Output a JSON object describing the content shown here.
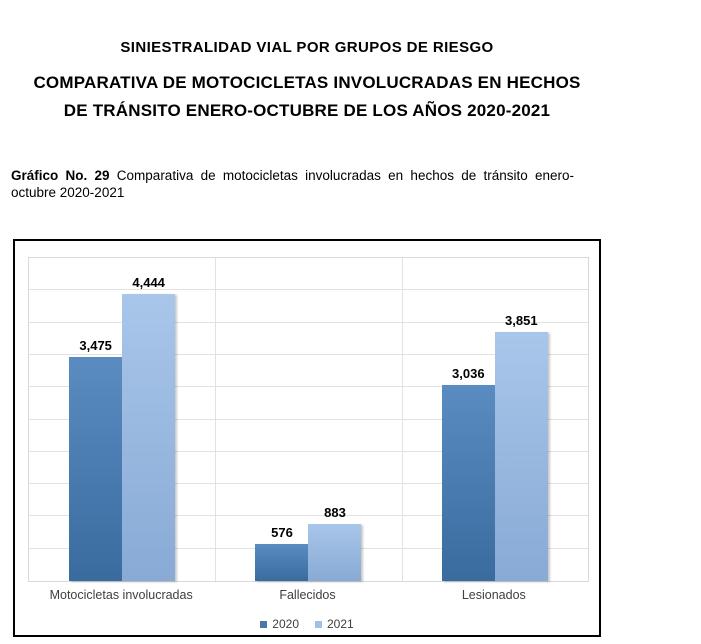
{
  "header": {
    "title": "SINIESTRALIDAD VIAL POR GRUPOS DE RIESGO",
    "subtitle_line1": "COMPARATIVA DE MOTOCICLETAS INVOLUCRADAS EN HECHOS",
    "subtitle_line2": "DE TRÁNSITO ENERO-OCTUBRE DE LOS AÑOS 2020-2021"
  },
  "caption": {
    "label": "Gráfico No. 29",
    "line1_rest": "Comparativa de motocicletas involucradas en hechos de tránsito enero-",
    "line2": "octubre 2020-2021"
  },
  "chart_data": {
    "type": "bar",
    "title": "",
    "xlabel": "",
    "ylabel": "",
    "categories": [
      "Motocicletas involucradas",
      "Fallecidos",
      "Lesionados"
    ],
    "series": [
      {
        "name": "2020",
        "values": [
          3475,
          576,
          3036
        ],
        "value_labels": [
          "3,475",
          "576",
          "3,036"
        ],
        "color_top": "#5b8cc1",
        "color_bottom": "#3a6b9f",
        "legend_color": "#4a77a8"
      },
      {
        "name": "2021",
        "values": [
          4444,
          883,
          3851
        ],
        "value_labels": [
          "4,444",
          "883",
          "3,851"
        ],
        "color_top": "#a9c6ea",
        "color_bottom": "#88aad5",
        "legend_color": "#a2c0e4"
      }
    ],
    "ylim": [
      0,
      5000
    ],
    "grid_step": 500,
    "grid": true,
    "y_tick_labels_shown": false,
    "value_labels_shown": true,
    "legend_position": "bottom",
    "colors": {
      "gridline": "#e2e2e2",
      "plot_border": "#d9d9d9",
      "figure_border": "#000000",
      "category_text": "#404040",
      "value_text": "#000000"
    }
  }
}
